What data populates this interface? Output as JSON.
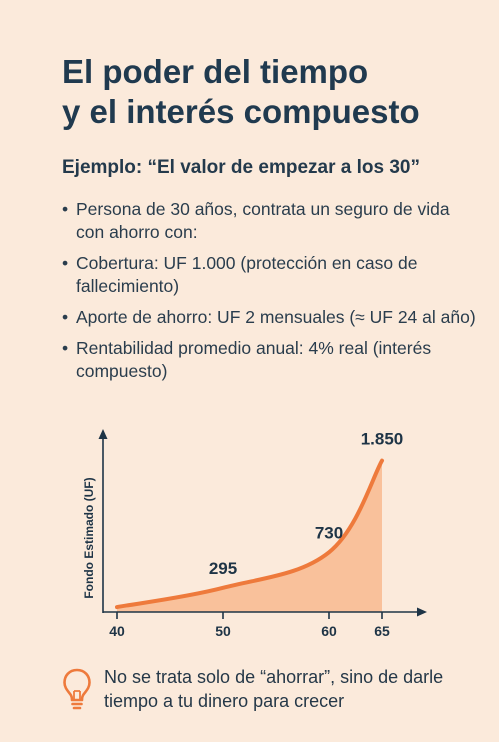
{
  "title_line1": "El poder del tiempo",
  "title_line2": "y el interés compuesto",
  "subtitle": "Ejemplo:  “El valor de empezar a los 30”",
  "bullets": [
    "Persona de 30 años, contrata un seguro de vida con ahorro con:",
    "Cobertura: UF 1.000 (protección en caso de fallecimiento)",
    "Aporte de ahorro: UF 2 mensuales (≈ UF 24 al año)",
    "Rentabilidad promedio anual: 4% real (interés compuesto)"
  ],
  "footer_text": "No se trata solo de “ahorrar”, sino de darle tiempo a tu dinero para crecer",
  "footer_icon": "lightbulb-icon",
  "colors": {
    "background": "#fbeadb",
    "curve": "#ee7a3c",
    "fill": "#f9c19b",
    "icon": "#ee7a3c",
    "text": "#203a4f"
  },
  "chart_data": {
    "type": "area",
    "ylabel": "Fondo Estimado (UF)",
    "xlabel": "",
    "x_ticks": [
      40,
      50,
      60,
      65
    ],
    "xlim": [
      40,
      65
    ],
    "ylim": [
      0,
      2200
    ],
    "points": [
      {
        "x": 40,
        "y": 60
      },
      {
        "x": 50,
        "y": 295
      },
      {
        "x": 60,
        "y": 730
      },
      {
        "x": 65,
        "y": 1850
      }
    ],
    "data_labels": [
      {
        "x": 50,
        "y": 295,
        "label": "295"
      },
      {
        "x": 60,
        "y": 730,
        "label": "730"
      },
      {
        "x": 65,
        "y": 1850,
        "label": "1.850"
      }
    ],
    "grid": false
  }
}
